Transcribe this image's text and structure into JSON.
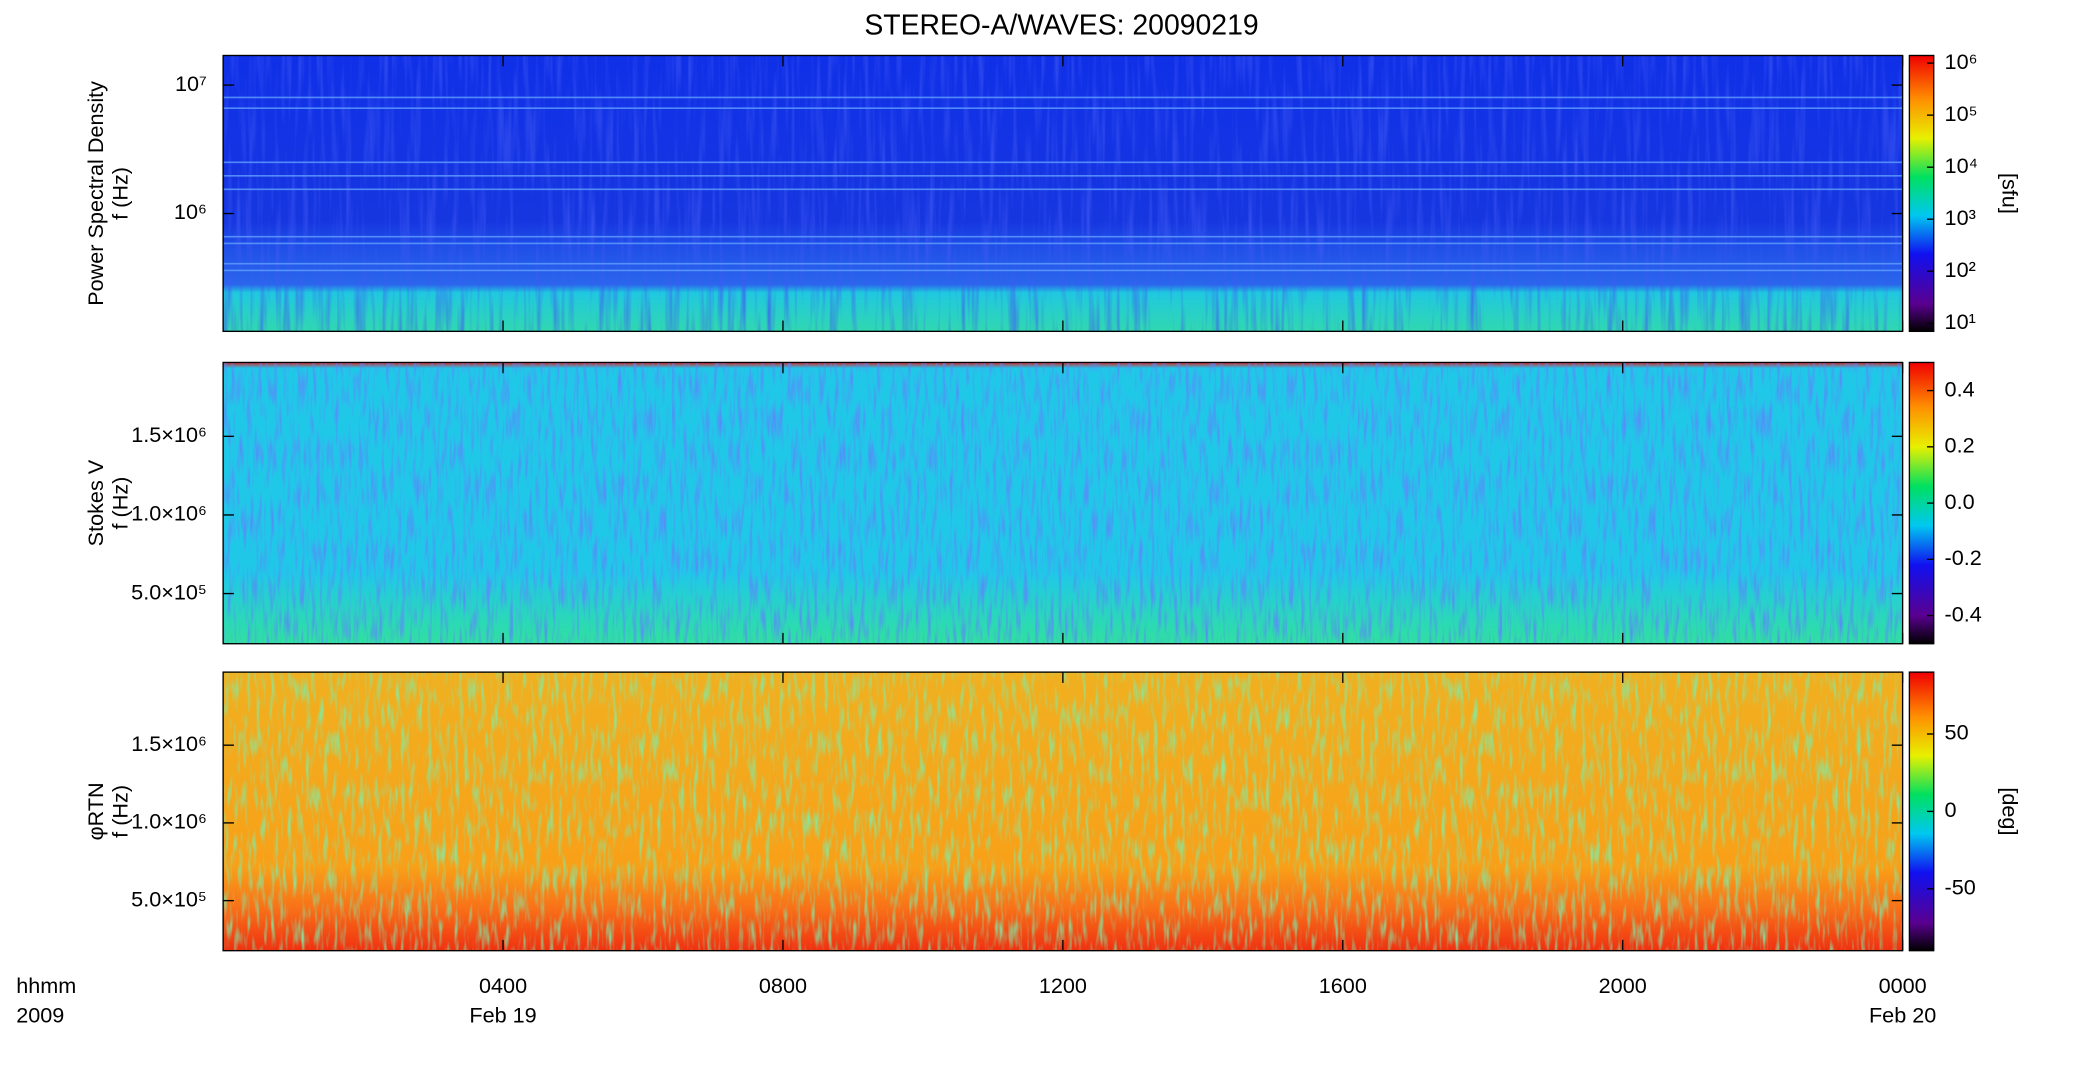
{
  "title": "STEREO-A/WAVES: 20090219",
  "x_axis": {
    "label_lines": [
      "hhmm",
      "2009"
    ],
    "xlim": [
      0,
      24
    ],
    "xticks": [
      {
        "value": 4,
        "label": "0400"
      },
      {
        "value": 8,
        "label": "0800"
      },
      {
        "value": 12,
        "label": "1200"
      },
      {
        "value": 16,
        "label": "1600"
      },
      {
        "value": 20,
        "label": "2000"
      },
      {
        "value": 24,
        "label": "0000"
      }
    ],
    "date_labels": [
      {
        "value": 4,
        "label": "Feb 19"
      },
      {
        "value": 24,
        "label": "Feb 20"
      }
    ]
  },
  "chart_data": [
    {
      "type": "heatmap",
      "ylabel_lines": [
        "Power Spectral Density",
        "f (Hz)"
      ],
      "ylog": true,
      "ylim": [
        121000,
        17000000
      ],
      "yticks": [
        {
          "value": 1000000,
          "label": "10⁶"
        },
        {
          "value": 10000000,
          "label": "10⁷"
        }
      ],
      "colorbar": {
        "log": true,
        "clim": [
          7,
          1400000
        ],
        "label": "[sfu]",
        "ticks": [
          {
            "value": 10,
            "label": "10¹"
          },
          {
            "value": 100,
            "label": "10²"
          },
          {
            "value": 1000,
            "label": "10³"
          },
          {
            "value": 10000,
            "label": "10⁴"
          },
          {
            "value": 100000,
            "label": "10⁵"
          },
          {
            "value": 1000000,
            "label": "10⁶"
          }
        ]
      }
    },
    {
      "type": "heatmap",
      "ylabel_lines": [
        "Stokes V",
        "f (Hz)"
      ],
      "ylog": false,
      "ylim": [
        181000,
        1970000
      ],
      "yticks": [
        {
          "value": 500000,
          "label": "5.0×10⁵"
        },
        {
          "value": 1000000,
          "label": "1.0×10⁶"
        },
        {
          "value": 1500000,
          "label": "1.5×10⁶"
        }
      ],
      "colorbar": {
        "log": false,
        "clim": [
          -0.5,
          0.5
        ],
        "ticks": [
          -0.4,
          -0.2,
          {
            "value": 0,
            "label": "0.0"
          },
          0.2,
          0.4
        ]
      }
    },
    {
      "type": "heatmap",
      "ylabel_lines": [
        "φRTN",
        "f (Hz)"
      ],
      "ylog": false,
      "ylim": [
        178000,
        1970000
      ],
      "yticks": [
        {
          "value": 500000,
          "label": "5.0×10⁵"
        },
        {
          "value": 1000000,
          "label": "1.0×10⁶"
        },
        {
          "value": 1500000,
          "label": "1.5×10⁶"
        }
      ],
      "colorbar": {
        "log": false,
        "clim": [
          -90,
          90
        ],
        "label": "[deg]",
        "ticks": [
          -50,
          0,
          50
        ]
      }
    }
  ]
}
